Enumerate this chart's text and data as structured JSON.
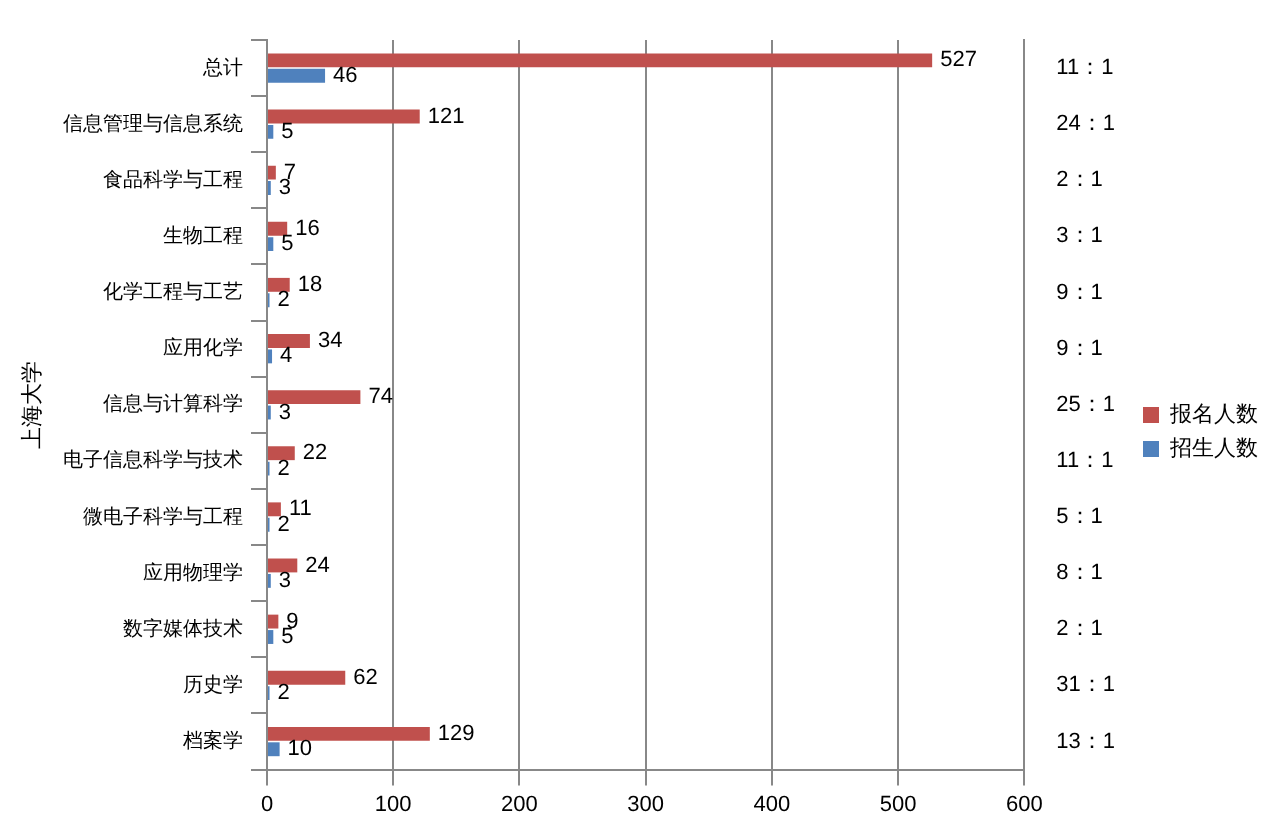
{
  "chart_data": {
    "type": "bar",
    "orientation": "horizontal",
    "ylabel": "上海大学",
    "categories": [
      "总计",
      "信息管理与信息系统",
      "食品科学与工程",
      "生物工程",
      "化学工程与工艺",
      "应用化学",
      "信息与计算科学",
      "电子信息科学与技术",
      "微电子科学与工程",
      "应用物理学",
      "数字媒体技术",
      "历史学",
      "档案学"
    ],
    "series": [
      {
        "name": "报名人数",
        "color": "#c0504d",
        "values": [
          527,
          121,
          7,
          16,
          18,
          34,
          74,
          22,
          11,
          24,
          9,
          62,
          129
        ]
      },
      {
        "name": "招生人数",
        "color": "#4f81bd",
        "values": [
          46,
          5,
          3,
          5,
          2,
          4,
          3,
          2,
          2,
          3,
          5,
          2,
          10
        ]
      }
    ],
    "xlim": [
      0,
      600
    ],
    "xticks": [
      0,
      100,
      200,
      300,
      400,
      500,
      600
    ],
    "grid": "x",
    "legend": "right",
    "data_labels": true,
    "annotations": [
      "11：1",
      "24：1",
      "2：1",
      "3：1",
      "9：1",
      "9：1",
      "25：1",
      "11：1",
      "5：1",
      "8：1",
      "2：1",
      "31：1",
      "13：1"
    ]
  }
}
